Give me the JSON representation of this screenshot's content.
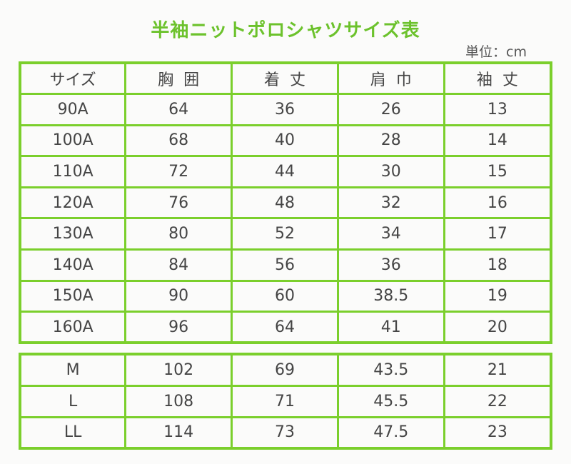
{
  "title": "半袖ニットポロシャツサイズ表",
  "unit": "単位：cm",
  "headers": [
    "サイズ",
    "胸囲",
    "着丈",
    "肩巾",
    "袖丈"
  ],
  "kids_rows": [
    [
      "90A",
      "64",
      "36",
      "26",
      "13"
    ],
    [
      "100A",
      "68",
      "40",
      "28",
      "14"
    ],
    [
      "110A",
      "72",
      "44",
      "30",
      "15"
    ],
    [
      "120A",
      "76",
      "48",
      "32",
      "16"
    ],
    [
      "130A",
      "80",
      "52",
      "34",
      "17"
    ],
    [
      "140A",
      "84",
      "56",
      "36",
      "18"
    ],
    [
      "150A",
      "90",
      "60",
      "38.5",
      "19"
    ],
    [
      "160A",
      "96",
      "64",
      "41",
      "20"
    ]
  ],
  "adult_rows": [
    [
      "M",
      "102",
      "69",
      "43.5",
      "21"
    ],
    [
      "L",
      "108",
      "71",
      "45.5",
      "22"
    ],
    [
      "LL",
      "114",
      "73",
      "47.5",
      "23"
    ]
  ],
  "colors": {
    "title": "#6cc22c",
    "border": "#7bcf2c",
    "text": "#454545",
    "background": "#fbfbfa"
  }
}
